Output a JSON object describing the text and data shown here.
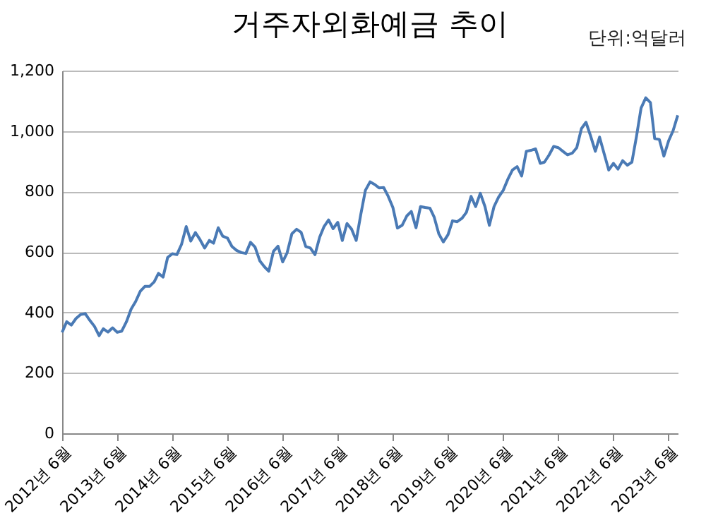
{
  "chart_data": {
    "type": "line",
    "title": "거주자외화예금 추이",
    "annotations": [
      "단위:억달러"
    ],
    "x": [
      "2012-06",
      "2012-07",
      "2012-08",
      "2012-09",
      "2012-10",
      "2012-11",
      "2012-12",
      "2013-01",
      "2013-02",
      "2013-03",
      "2013-04",
      "2013-05",
      "2013-06",
      "2013-07",
      "2013-08",
      "2013-09",
      "2013-10",
      "2013-11",
      "2013-12",
      "2014-01",
      "2014-02",
      "2014-03",
      "2014-04",
      "2014-05",
      "2014-06",
      "2014-07",
      "2014-08",
      "2014-09",
      "2014-10",
      "2014-11",
      "2014-12",
      "2015-01",
      "2015-02",
      "2015-03",
      "2015-04",
      "2015-05",
      "2015-06",
      "2015-07",
      "2015-08",
      "2015-09",
      "2015-10",
      "2015-11",
      "2015-12",
      "2016-01",
      "2016-02",
      "2016-03",
      "2016-04",
      "2016-05",
      "2016-06",
      "2016-07",
      "2016-08",
      "2016-09",
      "2016-10",
      "2016-11",
      "2016-12",
      "2017-01",
      "2017-02",
      "2017-03",
      "2017-04",
      "2017-05",
      "2017-06",
      "2017-07",
      "2017-08",
      "2017-09",
      "2017-10",
      "2017-11",
      "2017-12",
      "2018-01",
      "2018-02",
      "2018-03",
      "2018-04",
      "2018-05",
      "2018-06",
      "2018-07",
      "2018-08",
      "2018-09",
      "2018-10",
      "2018-11",
      "2018-12",
      "2019-01",
      "2019-02",
      "2019-03",
      "2019-04",
      "2019-05",
      "2019-06",
      "2019-07",
      "2019-08",
      "2019-09",
      "2019-10",
      "2019-11",
      "2019-12",
      "2020-01",
      "2020-02",
      "2020-03",
      "2020-04",
      "2020-05",
      "2020-06",
      "2020-07",
      "2020-08",
      "2020-09",
      "2020-10",
      "2020-11",
      "2020-12",
      "2021-01",
      "2021-02",
      "2021-03",
      "2021-04",
      "2021-05",
      "2021-06",
      "2021-07",
      "2021-08",
      "2021-09",
      "2021-10",
      "2021-11",
      "2021-12",
      "2022-01",
      "2022-02",
      "2022-03",
      "2022-04",
      "2022-05",
      "2022-06",
      "2022-07",
      "2022-08",
      "2022-09",
      "2022-10",
      "2022-11",
      "2022-12",
      "2023-01",
      "2023-02",
      "2023-03",
      "2023-04",
      "2023-05",
      "2023-06",
      "2023-07",
      "2023-08"
    ],
    "series": [
      {
        "color": "#4a7ab5",
        "values": [
          334,
          369,
          358,
          380,
          393,
          396,
          374,
          354,
          323,
          346,
          335,
          349,
          334,
          338,
          369,
          411,
          436,
          470,
          486,
          486,
          501,
          529,
          517,
          582,
          594,
          591,
          625,
          684,
          636,
          664,
          641,
          613,
          638,
          629,
          680,
          652,
          646,
          618,
          605,
          598,
          595,
          632,
          616,
          571,
          551,
          536,
          602,
          619,
          567,
          598,
          660,
          675,
          665,
          618,
          613,
          591,
          649,
          683,
          706,
          677,
          698,
          638,
          694,
          675,
          638,
          726,
          804,
          832,
          823,
          812,
          813,
          784,
          747,
          679,
          688,
          719,
          734,
          680,
          750,
          747,
          745,
          716,
          660,
          633,
          657,
          703,
          700,
          711,
          731,
          784,
          750,
          794,
          750,
          688,
          750,
          781,
          804,
          840,
          871,
          882,
          851,
          933,
          936,
          941,
          893,
          897,
          921,
          949,
          945,
          933,
          921,
          927,
          945,
          1008,
          1029,
          983,
          933,
          980,
          924,
          871,
          893,
          874,
          902,
          887,
          897,
          983,
          1076,
          1110,
          1094,
          975,
          972,
          917,
          967,
          1001,
          1052
        ]
      }
    ],
    "xlim": [
      "2012-06",
      "2023-08"
    ],
    "xticks": [
      {
        "value": "2012-06",
        "label": "2012년 6월"
      },
      {
        "value": "2013-06",
        "label": "2013년 6월"
      },
      {
        "value": "2014-06",
        "label": "2014년 6월"
      },
      {
        "value": "2015-06",
        "label": "2015년 6월"
      },
      {
        "value": "2016-06",
        "label": "2016년 6월"
      },
      {
        "value": "2017-06",
        "label": "2017년 6월"
      },
      {
        "value": "2018-06",
        "label": "2018년 6월"
      },
      {
        "value": "2019-06",
        "label": "2019년 6월"
      },
      {
        "value": "2020-06",
        "label": "2020년 6월"
      },
      {
        "value": "2021-06",
        "label": "2021년 6월"
      },
      {
        "value": "2022-06",
        "label": "2022년 6월"
      },
      {
        "value": "2023-06",
        "label": "2023년 6월"
      }
    ],
    "ylim": [
      0,
      1200
    ],
    "yticks": [
      0,
      200,
      400,
      600,
      800,
      {
        "value": 1000,
        "label": "1,000"
      },
      {
        "value": 1200,
        "label": "1,200"
      }
    ],
    "grid": "y",
    "marker": "none",
    "line_style": "solid"
  }
}
